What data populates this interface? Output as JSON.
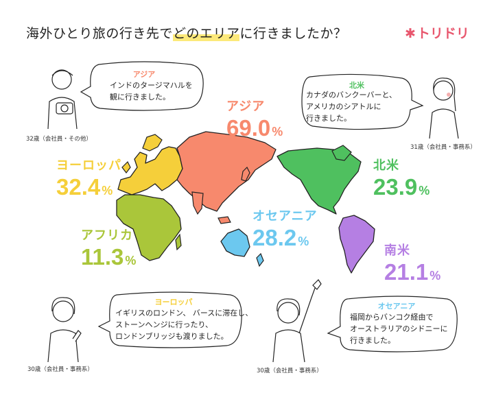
{
  "header": {
    "title_pre": "海外ひとり旅の行き先で",
    "title_highlight": "どのエリア",
    "title_post": "に行きましたか？",
    "logo": "トリドリ",
    "logo_mark": "✱"
  },
  "colors": {
    "asia": "#f7896d",
    "europe": "#f5cf3a",
    "africa": "#aac63a",
    "oceania": "#6cc8ef",
    "north_america": "#4fc05f",
    "south_america": "#b57fe3",
    "highlight": "#fce97a",
    "logo": "#e8566d"
  },
  "chart_data": {
    "type": "table",
    "unit": "%",
    "categories": [
      "アジア",
      "ヨーロッパ",
      "オセアニア",
      "北米",
      "南米",
      "アフリカ"
    ],
    "values": [
      69.0,
      32.4,
      28.2,
      23.9,
      21.1,
      11.3
    ],
    "value_labels": [
      "69.0",
      "32.4",
      "28.2",
      "23.9",
      "21.1",
      "11.3"
    ]
  },
  "testimonials": [
    {
      "region": "アジア",
      "text": [
        "インドのタージマハルを",
        "観に行きました。"
      ],
      "caption": "32歳（会社員・その他）"
    },
    {
      "region": "北米",
      "text": [
        "カナダのバンクーバーと、",
        "アメリカのシアトルに",
        "行きました。"
      ],
      "caption": "31歳（会社員・事務系）"
    },
    {
      "region": "ヨーロッパ",
      "text": [
        "イギリスのロンドン、 バースに滞在し、",
        "ストーンヘンジに行ったり、",
        "ロンドンブリッジも渡りました。"
      ],
      "caption": "30歳（会社員・事務系）"
    },
    {
      "region": "オセアニア",
      "text": [
        "福岡からバンコク経由で",
        "オーストラリアのシドニーに",
        "行きました。"
      ],
      "caption": "30歳（会社員・事務系）"
    }
  ]
}
